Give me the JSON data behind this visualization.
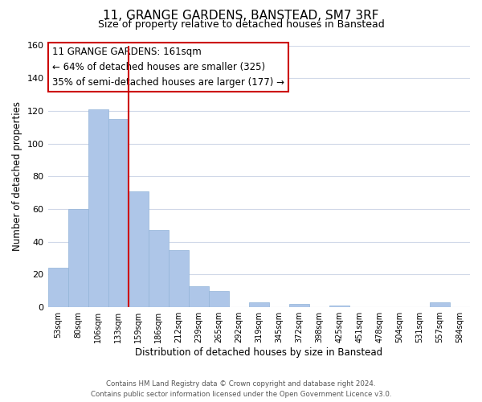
{
  "title": "11, GRANGE GARDENS, BANSTEAD, SM7 3RF",
  "subtitle": "Size of property relative to detached houses in Banstead",
  "xlabel": "Distribution of detached houses by size in Banstead",
  "ylabel": "Number of detached properties",
  "bar_labels": [
    "53sqm",
    "80sqm",
    "106sqm",
    "133sqm",
    "159sqm",
    "186sqm",
    "212sqm",
    "239sqm",
    "265sqm",
    "292sqm",
    "319sqm",
    "345sqm",
    "372sqm",
    "398sqm",
    "425sqm",
    "451sqm",
    "478sqm",
    "504sqm",
    "531sqm",
    "557sqm",
    "584sqm"
  ],
  "bar_values": [
    24,
    60,
    121,
    115,
    71,
    47,
    35,
    13,
    10,
    0,
    3,
    0,
    2,
    0,
    1,
    0,
    0,
    0,
    0,
    3,
    0
  ],
  "bar_color": "#aec6e8",
  "bar_edge_color": "#92b4d8",
  "highlight_line_color": "#cc0000",
  "annotation_title": "11 GRANGE GARDENS: 161sqm",
  "annotation_line1": "← 64% of detached houses are smaller (325)",
  "annotation_line2": "35% of semi-detached houses are larger (177) →",
  "annotation_box_color": "#ffffff",
  "annotation_box_edge": "#cc0000",
  "ylim": [
    0,
    160
  ],
  "yticks": [
    0,
    20,
    40,
    60,
    80,
    100,
    120,
    140,
    160
  ],
  "footer_line1": "Contains HM Land Registry data © Crown copyright and database right 2024.",
  "footer_line2": "Contains public sector information licensed under the Open Government Licence v3.0.",
  "background_color": "#ffffff",
  "grid_color": "#d0d8e8"
}
